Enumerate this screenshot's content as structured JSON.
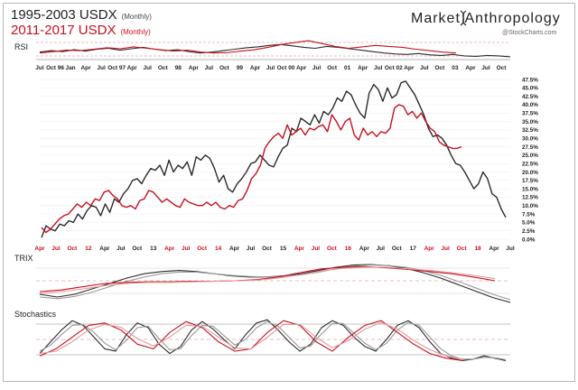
{
  "header": {
    "title_1": "1995-2003 USDX",
    "title_1_suffix": "(Monthly)",
    "title_2": "2011-2017  USDX",
    "title_2_suffix": "(Monthly)",
    "brand": "Market  Anthropology",
    "source": "@StockCharts.com"
  },
  "colors": {
    "series_1995_2003": "#2b2b2b",
    "series_2011_2017": "#c8101e",
    "grid": "#cfcfcf"
  },
  "panels": {
    "rsi": "RSI",
    "trix": "TRIX",
    "stochastics": "Stochastics"
  },
  "chart_data": [
    {
      "type": "line",
      "panel": "price",
      "title": "",
      "x_top_ticks": [
        "Jul",
        "Oct 96",
        "Jan",
        "Apr",
        "Jul",
        "Oct 97",
        "Apr",
        "Jul",
        "Oct",
        "98",
        "Apr",
        "Jul",
        "Oct",
        "99",
        "Apr",
        "Jul",
        "Oct 00",
        "Apr",
        "Jul",
        "Oct",
        "01",
        "Apr",
        "Jul",
        "Oct 02",
        "Apr",
        "Jul",
        "Oct",
        "03",
        "Apr",
        "Jul",
        "Oct"
      ],
      "x_bottom_ticks": [
        {
          "label": "Apr",
          "color": "red"
        },
        {
          "label": "Jul",
          "color": "red"
        },
        {
          "label": "Oct",
          "color": "red"
        },
        {
          "label": "12",
          "color": "red"
        },
        {
          "label": "Apr",
          "color": "black"
        },
        {
          "label": "Jul",
          "color": "black"
        },
        {
          "label": "Oct",
          "color": "black"
        },
        {
          "label": "13",
          "color": "black"
        },
        {
          "label": "Apr",
          "color": "red"
        },
        {
          "label": "Jul",
          "color": "red"
        },
        {
          "label": "Oct",
          "color": "red"
        },
        {
          "label": "14",
          "color": "red"
        },
        {
          "label": "Apr",
          "color": "black"
        },
        {
          "label": "Jul",
          "color": "black"
        },
        {
          "label": "Oct",
          "color": "black"
        },
        {
          "label": "15",
          "color": "black"
        },
        {
          "label": "Apr",
          "color": "red"
        },
        {
          "label": "Jul",
          "color": "red"
        },
        {
          "label": "Oct",
          "color": "red"
        },
        {
          "label": "16",
          "color": "red"
        },
        {
          "label": "Apr",
          "color": "black"
        },
        {
          "label": "Jul",
          "color": "black"
        },
        {
          "label": "Oct",
          "color": "black"
        },
        {
          "label": "17",
          "color": "black"
        },
        {
          "label": "Apr",
          "color": "red"
        },
        {
          "label": "Jul",
          "color": "red"
        },
        {
          "label": "Oct",
          "color": "red"
        },
        {
          "label": "18",
          "color": "red"
        },
        {
          "label": "Apr",
          "color": "black"
        },
        {
          "label": "Jul",
          "color": "black"
        }
      ],
      "y_ticks": [
        "47.5%",
        "45.0%",
        "42.5%",
        "40.0%",
        "37.5%",
        "35.0%",
        "32.5%",
        "30.0%",
        "27.5%",
        "25.0%",
        "22.5%",
        "20.0%",
        "17.5%",
        "15.0%",
        "12.5%",
        "10.0%",
        "7.5%",
        "5.0%",
        "2.5%",
        "0.0%"
      ],
      "ylim": [
        0,
        47.5
      ],
      "series": [
        {
          "color": "#2b2b2b",
          "values": [
            0.5,
            4.0,
            3.0,
            2.5,
            4.5,
            4.0,
            5.5,
            5.0,
            7.5,
            6.0,
            8.5,
            10.0,
            9.5,
            7.0,
            10.5,
            8.0,
            12.0,
            11.0,
            13.5,
            15.0,
            17.5,
            18.0,
            16.5,
            19.0,
            21.0,
            20.5,
            22.0,
            19.0,
            23.5,
            20.0,
            22.0,
            21.0,
            23.0,
            19.0,
            24.5,
            23.5,
            25.0,
            24.0,
            21.0,
            17.0,
            19.0,
            15.0,
            14.0,
            16.5,
            18.0,
            20.0,
            22.5,
            23.0,
            25.0,
            23.5,
            22.0,
            21.5,
            24.5,
            27.0,
            28.0,
            33.0,
            32.0,
            36.0,
            35.0,
            34.0,
            37.0,
            34.5,
            38.0,
            37.0,
            39.0,
            42.0,
            41.0,
            44.0,
            43.0,
            40.0,
            37.5,
            36.0,
            43.5,
            46.0,
            44.5,
            41.0,
            45.0,
            42.0,
            43.0,
            46.5,
            47.0,
            45.0,
            43.0,
            40.0,
            37.0,
            33.0,
            30.5,
            31.0,
            30.0,
            28.0,
            25.0,
            22.5,
            22.0,
            20.0,
            17.5,
            15.0,
            16.5,
            20.0,
            18.0,
            13.5,
            12.5,
            9.0,
            6.5
          ]
        },
        {
          "color": "#c8101e",
          "values": [
            3.5,
            2.0,
            3.0,
            4.5,
            6.0,
            7.0,
            7.5,
            9.0,
            10.5,
            9.5,
            11.0,
            10.0,
            12.0,
            11.5,
            14.0,
            14.5,
            13.0,
            12.0,
            10.0,
            9.5,
            10.0,
            9.0,
            11.5,
            12.0,
            14.5,
            14.0,
            12.5,
            11.0,
            12.0,
            11.0,
            10.0,
            9.5,
            12.0,
            11.0,
            10.5,
            10.0,
            10.0,
            11.0,
            10.0,
            11.0,
            9.5,
            9.0,
            10.0,
            9.5,
            11.5,
            12.0,
            14.5,
            18.0,
            19.5,
            22.0,
            27.0,
            29.0,
            30.5,
            31.5,
            30.0,
            34.0,
            31.0,
            32.0,
            33.0,
            31.0,
            33.0,
            32.5,
            33.5,
            34.0,
            32.0,
            37.0,
            35.0,
            32.5,
            35.0,
            36.0,
            31.0,
            29.5,
            33.0,
            31.0,
            32.0,
            30.5,
            32.0,
            31.5,
            33.0,
            39.0,
            40.0,
            39.5,
            37.0,
            38.0,
            36.0,
            37.5,
            35.0,
            33.0,
            32.0,
            29.0,
            28.0,
            27.5,
            27.0,
            27.0,
            27.5
          ]
        }
      ]
    },
    {
      "type": "line",
      "panel": "rsi",
      "title": "RSI",
      "series": [
        {
          "color": "#2b2b2b",
          "values": [
            52,
            55,
            53,
            57,
            54,
            58,
            60,
            56,
            59,
            62,
            58,
            55,
            57,
            53,
            50,
            52,
            55,
            58,
            61,
            63,
            66,
            68,
            65,
            62,
            60,
            64,
            62,
            59,
            56,
            53,
            50,
            48,
            47,
            49,
            46,
            45,
            47,
            44,
            43,
            45,
            44,
            42
          ]
        },
        {
          "color": "#c8101e",
          "values": [
            50,
            53,
            56,
            55,
            58,
            61,
            59,
            63,
            60,
            57,
            54,
            56,
            52,
            50,
            51,
            54,
            57,
            62,
            68,
            72,
            76,
            70,
            64,
            60,
            63,
            66,
            64,
            62,
            58,
            55,
            52,
            50
          ]
        }
      ]
    },
    {
      "type": "line",
      "panel": "trix",
      "title": "TRIX",
      "series": [
        {
          "color": "#2b2b2b",
          "values": [
            -0.2,
            -0.25,
            -0.2,
            -0.1,
            0.0,
            0.1,
            0.18,
            0.22,
            0.24,
            0.22,
            0.18,
            0.14,
            0.12,
            0.12,
            0.14,
            0.18,
            0.24,
            0.3,
            0.34,
            0.35,
            0.33,
            0.28,
            0.2,
            0.1,
            -0.02,
            -0.14,
            -0.26,
            -0.35
          ]
        },
        {
          "color": "#999999",
          "values": [
            -0.25,
            -0.28,
            -0.24,
            -0.16,
            -0.06,
            0.04,
            0.12,
            0.18,
            0.21,
            0.21,
            0.18,
            0.15,
            0.13,
            0.12,
            0.13,
            0.16,
            0.21,
            0.27,
            0.32,
            0.34,
            0.33,
            0.3,
            0.24,
            0.15,
            0.04,
            -0.08,
            -0.2,
            -0.3
          ]
        },
        {
          "color": "#c8101e",
          "values": [
            -0.15,
            -0.12,
            -0.06,
            0.0,
            0.02,
            0.03,
            0.03,
            0.04,
            0.04,
            0.05,
            0.07,
            0.12,
            0.2,
            0.27,
            0.3,
            0.31,
            0.29,
            0.26,
            0.22,
            0.18,
            0.12,
            0.05
          ]
        },
        {
          "color": "#e59a9a",
          "values": [
            -0.18,
            -0.15,
            -0.1,
            -0.04,
            0.0,
            0.02,
            0.02,
            0.03,
            0.04,
            0.05,
            0.06,
            0.1,
            0.16,
            0.23,
            0.28,
            0.3,
            0.3,
            0.27,
            0.24,
            0.2,
            0.15,
            0.09
          ]
        }
      ]
    },
    {
      "type": "line",
      "panel": "stochastics",
      "title": "Stochastics",
      "series": [
        {
          "color": "#2b2b2b",
          "values": [
            20,
            45,
            70,
            90,
            80,
            55,
            30,
            25,
            60,
            85,
            75,
            40,
            20,
            35,
            70,
            88,
            72,
            50,
            30,
            60,
            85,
            92,
            70,
            45,
            25,
            40,
            75,
            90,
            80,
            55,
            35,
            25,
            50,
            80,
            90,
            75,
            45,
            20,
            10,
            5,
            8,
            15,
            10,
            5
          ]
        },
        {
          "color": "#999999",
          "values": [
            25,
            38,
            60,
            80,
            82,
            65,
            42,
            28,
            48,
            75,
            78,
            52,
            28,
            30,
            58,
            80,
            78,
            58,
            38,
            50,
            75,
            88,
            78,
            55,
            32,
            36,
            62,
            84,
            84,
            63,
            42,
            28,
            42,
            70,
            86,
            80,
            55,
            30,
            15,
            8,
            8,
            12,
            11,
            7
          ]
        },
        {
          "color": "#c8101e",
          "values": [
            15,
            30,
            55,
            80,
            85,
            70,
            40,
            30,
            65,
            88,
            75,
            45,
            25,
            30,
            65,
            90,
            80,
            45,
            25,
            55,
            80,
            90,
            65,
            40,
            20,
            10,
            5
          ]
        },
        {
          "color": "#e59a9a",
          "values": [
            20,
            25,
            45,
            70,
            82,
            76,
            52,
            36,
            55,
            80,
            78,
            55,
            32,
            30,
            55,
            82,
            82,
            55,
            32,
            48,
            72,
            86,
            72,
            48,
            28,
            15,
            8
          ]
        }
      ]
    }
  ]
}
